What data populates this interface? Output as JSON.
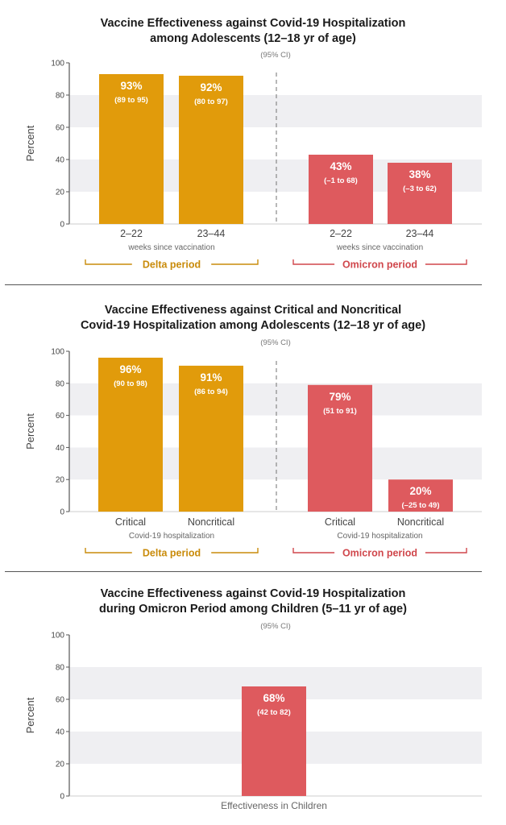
{
  "colors": {
    "delta": "#e19b0b",
    "omicron": "#de5a5e",
    "band": "#efeff2",
    "axis": "#555555"
  },
  "panels": [
    {
      "title_lines": [
        "Vaccine Effectiveness against Covid-19 Hospitalization",
        "among Adolescents (12–18 yr of age)"
      ],
      "ci_label": "(95% CI)",
      "ylabel": "Percent",
      "group_subtitle": "weeks since vaccination",
      "groups": [
        "Delta period",
        "Omicron period"
      ]
    },
    {
      "title_lines": [
        "Vaccine Effectiveness against Critical and Noncritical",
        "Covid-19 Hospitalization among Adolescents (12–18 yr of age)"
      ],
      "ci_label": "(95% CI)",
      "ylabel": "Percent",
      "group_subtitle": "Covid-19 hospitalization",
      "groups": [
        "Delta period",
        "Omicron period"
      ]
    },
    {
      "title_lines": [
        "Vaccine Effectiveness against Covid-19 Hospitalization",
        "during Omicron Period among Children (5–11 yr of age)"
      ],
      "ci_label": "(95% CI)",
      "ylabel": "Percent",
      "xlabel": "Effectiveness in Children"
    }
  ],
  "chart_data": [
    {
      "type": "bar",
      "ylabel": "Percent",
      "ylim": [
        0,
        100
      ],
      "yticks": [
        0,
        20,
        40,
        60,
        80,
        100
      ],
      "grid": "alternating bands",
      "bars": [
        {
          "category": "2–22",
          "group": "Delta period",
          "value": 93,
          "label": "93%",
          "ci": "(89 to 95)",
          "color": "#e19b0b"
        },
        {
          "category": "23–44",
          "group": "Delta period",
          "value": 92,
          "label": "92%",
          "ci": "(80 to 97)",
          "color": "#e19b0b"
        },
        {
          "category": "2–22",
          "group": "Omicron period",
          "value": 43,
          "label": "43%",
          "ci": "(–1 to 68)",
          "color": "#de5a5e"
        },
        {
          "category": "23–44",
          "group": "Omicron period",
          "value": 38,
          "label": "38%",
          "ci": "(–3 to 62)",
          "color": "#de5a5e"
        }
      ]
    },
    {
      "type": "bar",
      "ylabel": "Percent",
      "ylim": [
        0,
        100
      ],
      "yticks": [
        0,
        20,
        40,
        60,
        80,
        100
      ],
      "grid": "alternating bands",
      "bars": [
        {
          "category": "Critical",
          "group": "Delta period",
          "value": 96,
          "label": "96%",
          "ci": "(90 to 98)",
          "color": "#e19b0b"
        },
        {
          "category": "Noncritical",
          "group": "Delta period",
          "value": 91,
          "label": "91%",
          "ci": "(86 to 94)",
          "color": "#e19b0b"
        },
        {
          "category": "Critical",
          "group": "Omicron period",
          "value": 79,
          "label": "79%",
          "ci": "(51 to 91)",
          "color": "#de5a5e"
        },
        {
          "category": "Noncritical",
          "group": "Omicron period",
          "value": 20,
          "label": "20%",
          "ci": "(–25 to 49)",
          "color": "#de5a5e"
        }
      ]
    },
    {
      "type": "bar",
      "ylabel": "Percent",
      "xlabel": "Effectiveness in Children",
      "ylim": [
        0,
        100
      ],
      "yticks": [
        0,
        20,
        40,
        60,
        80,
        100
      ],
      "grid": "alternating bands",
      "bars": [
        {
          "category": "",
          "group": "Omicron period",
          "value": 68,
          "label": "68%",
          "ci": "(42 to 82)",
          "color": "#de5a5e"
        }
      ]
    }
  ]
}
